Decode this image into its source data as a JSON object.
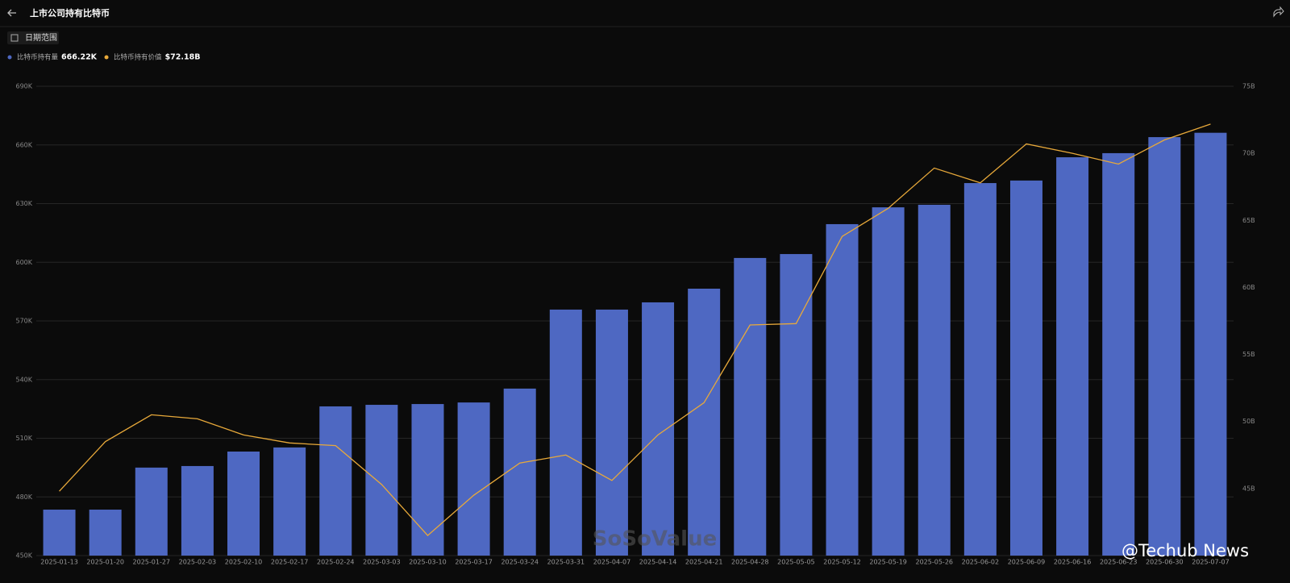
{
  "header": {
    "title": "上市公司持有比特币",
    "date_button": "日期范围"
  },
  "chart_data": {
    "type": "bar-line",
    "categories": [
      "2025-01-13",
      "2025-01-20",
      "2025-01-27",
      "2025-02-03",
      "2025-02-10",
      "2025-02-17",
      "2025-02-24",
      "2025-03-03",
      "2025-03-10",
      "2025-03-17",
      "2025-03-24",
      "2025-03-31",
      "2025-04-07",
      "2025-04-14",
      "2025-04-21",
      "2025-04-28",
      "2025-05-05",
      "2025-05-12",
      "2025-05-19",
      "2025-05-26",
      "2025-06-02",
      "2025-06-09",
      "2025-06-16",
      "2025-06-23",
      "2025-06-30",
      "2025-07-07"
    ],
    "series": [
      {
        "name": "比特币持有量",
        "color": "#4e68c2",
        "legend_value": "666.22K",
        "values": [
          473.5,
          473.5,
          495,
          495.8,
          503.2,
          505.3,
          526.3,
          527.1,
          527.5,
          528.3,
          535.4,
          575.8,
          575.8,
          579.5,
          586.5,
          602.2,
          604.2,
          619.5,
          628.1,
          629.4,
          640.5,
          641.8,
          653.7,
          655.8,
          664,
          666.22
        ]
      },
      {
        "name": "比特币持有价值",
        "color": "#e8a93a",
        "axis": "y2",
        "legend_value": "$72.18B",
        "values": [
          44.8,
          48.5,
          50.5,
          50.2,
          49.0,
          48.4,
          48.2,
          45.3,
          41.5,
          44.5,
          46.9,
          47.5,
          45.6,
          49.0,
          51.4,
          57.2,
          57.3,
          63.8,
          65.9,
          68.9,
          67.8,
          70.7,
          70.0,
          69.2,
          71.0,
          72.18
        ]
      }
    ],
    "ylim": [
      450,
      690
    ],
    "yticks": [
      {
        "value": 450,
        "label": "450K"
      },
      {
        "value": 480,
        "label": "480K"
      },
      {
        "value": 510,
        "label": "510K"
      },
      {
        "value": 540,
        "label": "540K"
      },
      {
        "value": 570,
        "label": "570K"
      },
      {
        "value": 600,
        "label": "600K"
      },
      {
        "value": 630,
        "label": "630K"
      },
      {
        "value": 660,
        "label": "660K"
      },
      {
        "value": 690,
        "label": "690K"
      }
    ],
    "y2lim": [
      40,
      75
    ],
    "y2ticks": [
      {
        "value": 45,
        "label": "45B"
      },
      {
        "value": 50,
        "label": "50B"
      },
      {
        "value": 55,
        "label": "55B"
      },
      {
        "value": 60,
        "label": "60B"
      },
      {
        "value": 65,
        "label": "65B"
      },
      {
        "value": 70,
        "label": "70B"
      },
      {
        "value": 75,
        "label": "75B"
      }
    ],
    "grid": true
  },
  "watermarks": [
    "SoSoValue",
    "@Techub News"
  ]
}
